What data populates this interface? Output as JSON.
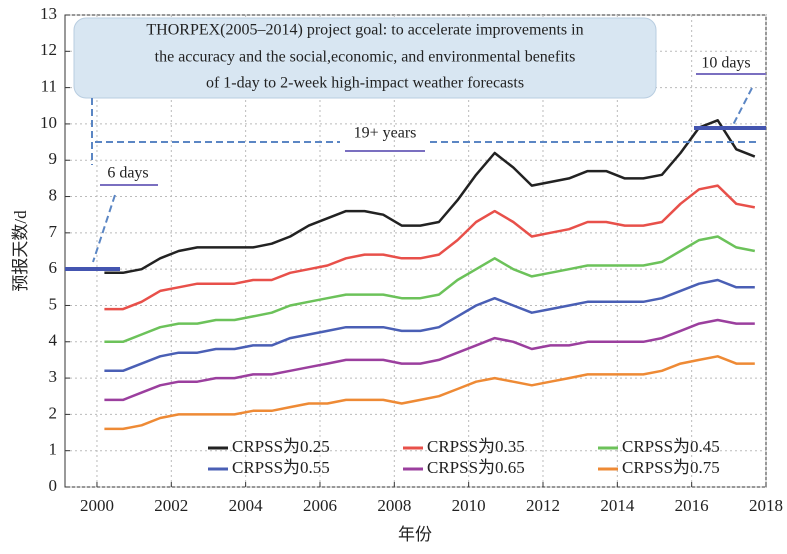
{
  "chart_data": {
    "type": "line",
    "annotations": [
      "THORPEX(2005–2014) project goal: to accelerate improvements in",
      "the accuracy and the social,economic, and environmental benefits",
      "of 1-day to 2-week high-impact weather forecasts",
      "19+ years",
      "6 days",
      "10 days"
    ],
    "xlabel": "年份",
    "ylabel": "预报天数/d",
    "x": [
      2000.2,
      2000.7,
      2001.2,
      2001.7,
      2002.2,
      2002.7,
      2003.2,
      2003.7,
      2004.2,
      2004.7,
      2005.2,
      2005.7,
      2006.2,
      2006.7,
      2007.2,
      2007.7,
      2008.2,
      2008.7,
      2009.2,
      2009.7,
      2010.2,
      2010.7,
      2011.2,
      2011.7,
      2012.2,
      2012.7,
      2013.2,
      2013.7,
      2014.2,
      2014.7,
      2015.2,
      2015.7,
      2016.2,
      2016.7,
      2017.2,
      2017.7
    ],
    "series": [
      {
        "name": "CRPSS为0.25",
        "color": "#222222",
        "values": [
          5.9,
          5.9,
          6.0,
          6.3,
          6.5,
          6.6,
          6.6,
          6.6,
          6.6,
          6.7,
          6.9,
          7.2,
          7.4,
          7.6,
          7.6,
          7.5,
          7.2,
          7.2,
          7.3,
          7.9,
          8.6,
          9.2,
          8.8,
          8.3,
          8.4,
          8.5,
          8.7,
          8.7,
          8.5,
          8.5,
          8.6,
          9.2,
          9.9,
          10.1,
          9.3,
          9.1
        ]
      },
      {
        "name": "CRPSS为0.35",
        "color": "#e8504a",
        "values": [
          4.9,
          4.9,
          5.1,
          5.4,
          5.5,
          5.6,
          5.6,
          5.6,
          5.7,
          5.7,
          5.9,
          6.0,
          6.1,
          6.3,
          6.4,
          6.4,
          6.3,
          6.3,
          6.4,
          6.8,
          7.3,
          7.6,
          7.3,
          6.9,
          7.0,
          7.1,
          7.3,
          7.3,
          7.2,
          7.2,
          7.3,
          7.8,
          8.2,
          8.3,
          7.8,
          7.7
        ]
      },
      {
        "name": "CRPSS为0.45",
        "color": "#6cc25a",
        "values": [
          4.0,
          4.0,
          4.2,
          4.4,
          4.5,
          4.5,
          4.6,
          4.6,
          4.7,
          4.8,
          5.0,
          5.1,
          5.2,
          5.3,
          5.3,
          5.3,
          5.2,
          5.2,
          5.3,
          5.7,
          6.0,
          6.3,
          6.0,
          5.8,
          5.9,
          6.0,
          6.1,
          6.1,
          6.1,
          6.1,
          6.2,
          6.5,
          6.8,
          6.9,
          6.6,
          6.5
        ]
      },
      {
        "name": "CRPSS为0.55",
        "color": "#4a5fb5",
        "values": [
          3.2,
          3.2,
          3.4,
          3.6,
          3.7,
          3.7,
          3.8,
          3.8,
          3.9,
          3.9,
          4.1,
          4.2,
          4.3,
          4.4,
          4.4,
          4.4,
          4.3,
          4.3,
          4.4,
          4.7,
          5.0,
          5.2,
          5.0,
          4.8,
          4.9,
          5.0,
          5.1,
          5.1,
          5.1,
          5.1,
          5.2,
          5.4,
          5.6,
          5.7,
          5.5,
          5.5
        ]
      },
      {
        "name": "CRPSS为0.65",
        "color": "#9b3f9e",
        "values": [
          2.4,
          2.4,
          2.6,
          2.8,
          2.9,
          2.9,
          3.0,
          3.0,
          3.1,
          3.1,
          3.2,
          3.3,
          3.4,
          3.5,
          3.5,
          3.5,
          3.4,
          3.4,
          3.5,
          3.7,
          3.9,
          4.1,
          4.0,
          3.8,
          3.9,
          3.9,
          4.0,
          4.0,
          4.0,
          4.0,
          4.1,
          4.3,
          4.5,
          4.6,
          4.5,
          4.5
        ]
      },
      {
        "name": "CRPSS为0.75",
        "color": "#ee8a35",
        "values": [
          1.6,
          1.6,
          1.7,
          1.9,
          2.0,
          2.0,
          2.0,
          2.0,
          2.1,
          2.1,
          2.2,
          2.3,
          2.3,
          2.4,
          2.4,
          2.4,
          2.3,
          2.4,
          2.5,
          2.7,
          2.9,
          3.0,
          2.9,
          2.8,
          2.9,
          3.0,
          3.1,
          3.1,
          3.1,
          3.1,
          3.2,
          3.4,
          3.5,
          3.6,
          3.4,
          3.4
        ]
      }
    ],
    "xlim": [
      1999.14,
      2018
    ],
    "xticks": [
      2000,
      2002,
      2004,
      2006,
      2008,
      2010,
      2012,
      2014,
      2016,
      2018
    ],
    "ylim": [
      0,
      13
    ],
    "yticks": [
      0,
      1,
      2,
      3,
      4,
      5,
      6,
      7,
      8,
      9,
      10,
      11,
      12,
      13
    ],
    "grid": true
  }
}
